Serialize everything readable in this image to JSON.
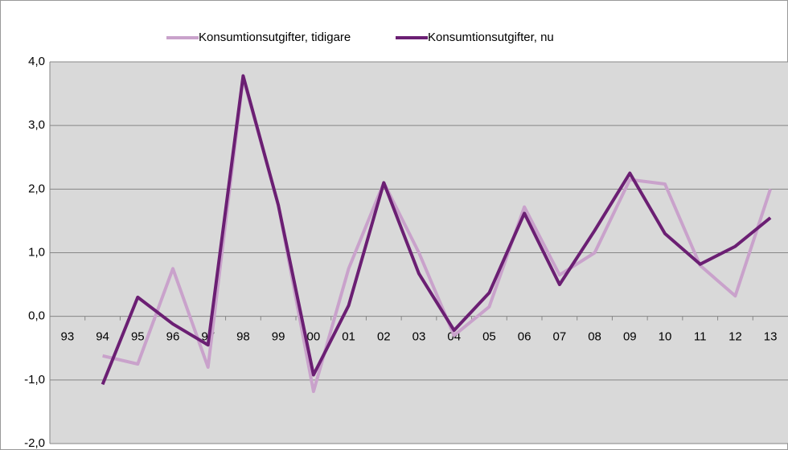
{
  "chart_data": {
    "type": "line",
    "categories": [
      "93",
      "94",
      "95",
      "96",
      "97",
      "98",
      "99",
      "00",
      "01",
      "02",
      "03",
      "04",
      "05",
      "06",
      "07",
      "08",
      "09",
      "10",
      "11",
      "12",
      "13"
    ],
    "series": [
      {
        "name": "Konsumtionsutgifter, tidigare",
        "color": "#c9a2cb",
        "values": [
          null,
          -0.62,
          -0.75,
          0.75,
          -0.8,
          3.75,
          1.75,
          -1.18,
          0.75,
          2.1,
          1.0,
          -0.3,
          0.15,
          1.72,
          0.65,
          1.0,
          2.15,
          2.08,
          0.8,
          0.32,
          2.0
        ]
      },
      {
        "name": "Konsumtionsutgifter, nu",
        "color": "#6b1f73",
        "values": [
          null,
          -1.07,
          0.3,
          -0.12,
          -0.45,
          3.78,
          1.75,
          -0.92,
          0.17,
          2.1,
          0.67,
          -0.22,
          0.37,
          1.62,
          0.5,
          1.35,
          2.25,
          1.3,
          0.82,
          1.1,
          1.55
        ]
      }
    ],
    "ylim": [
      -2,
      4
    ],
    "yticks": [
      {
        "value": -2,
        "label": "-2,0"
      },
      {
        "value": -1,
        "label": "-1,0"
      },
      {
        "value": 0,
        "label": "0,0"
      },
      {
        "value": 1,
        "label": "1,0"
      },
      {
        "value": 2,
        "label": "2,0"
      },
      {
        "value": 3,
        "label": "3,0"
      },
      {
        "value": 4,
        "label": "4,0"
      }
    ],
    "grid": true,
    "legend": "top"
  }
}
